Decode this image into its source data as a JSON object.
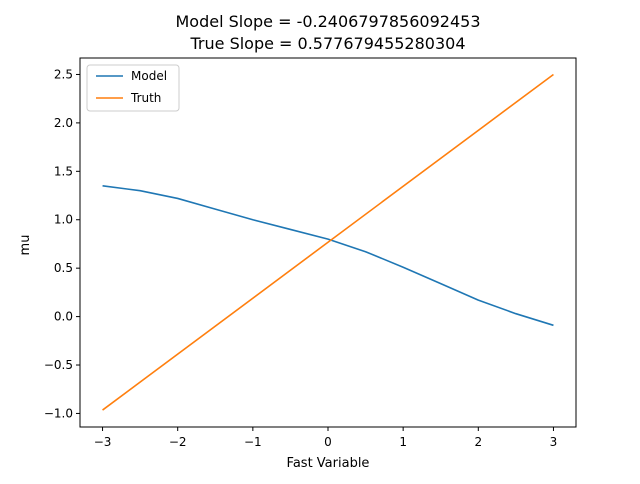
{
  "chart_data": {
    "type": "line",
    "title_lines": [
      "Model Slope = -0.2406797856092453",
      "True Slope = 0.577679455280304"
    ],
    "xlabel": "Fast Variable",
    "ylabel": "mu",
    "xlim": [
      -3.3,
      3.3
    ],
    "ylim": [
      -1.14,
      2.67
    ],
    "xticks": [
      -3,
      -2,
      -1,
      0,
      1,
      2,
      3
    ],
    "xtick_labels": [
      "−3",
      "−2",
      "−1",
      "0",
      "1",
      "2",
      "3"
    ],
    "yticks": [
      -1.0,
      -0.5,
      0.0,
      0.5,
      1.0,
      1.5,
      2.0,
      2.5
    ],
    "ytick_labels": [
      "−1.0",
      "−0.5",
      "0.0",
      "0.5",
      "1.0",
      "1.5",
      "2.0",
      "2.5"
    ],
    "grid": false,
    "legend_position": "top-left",
    "series": [
      {
        "name": "Model",
        "color": "#1f77b4",
        "x": [
          -3,
          -2.5,
          -2,
          -1.5,
          -1,
          -0.5,
          0,
          0.5,
          1,
          1.5,
          2,
          2.5,
          3
        ],
        "y": [
          1.35,
          1.3,
          1.22,
          1.11,
          1.0,
          0.9,
          0.8,
          0.67,
          0.51,
          0.34,
          0.17,
          0.03,
          -0.09
        ]
      },
      {
        "name": "Truth",
        "color": "#ff7f0e",
        "x": [
          -3,
          3
        ],
        "y": [
          -0.965,
          2.5
        ]
      }
    ]
  }
}
